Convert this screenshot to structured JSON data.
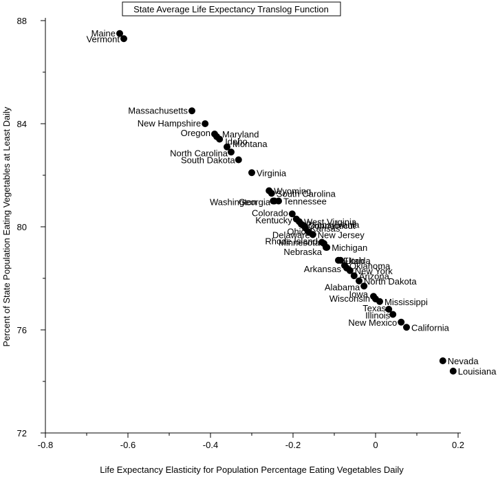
{
  "chart_data": {
    "type": "scatter",
    "title": "State Average Life Expectancy Translog Function",
    "xlabel": "Life Expectancy Elasticity for Population Percentage Eating Vegetables Daily",
    "ylabel": "Percent of State Population Eating Vegetables at Least Daily",
    "xlim": [
      -0.8,
      0.2
    ],
    "ylim": [
      72,
      88
    ],
    "x_ticks": [
      "-0.8",
      "-0.6",
      "-0.4",
      "-0.2",
      "0",
      "0.2"
    ],
    "y_ticks": [
      "72",
      "76",
      "80",
      "84",
      "88"
    ],
    "grid": false,
    "marker_color": "#000000",
    "points": [
      {
        "label": "Maine",
        "x": -0.62,
        "y": 87.5
      },
      {
        "label": "Vermont",
        "x": -0.61,
        "y": 87.3
      },
      {
        "label": "Massachusetts",
        "x": -0.445,
        "y": 84.5
      },
      {
        "label": "New Hampshire",
        "x": -0.413,
        "y": 84.0
      },
      {
        "label": "Oregon",
        "x": -0.39,
        "y": 83.6
      },
      {
        "label": "Maryland",
        "x": -0.385,
        "y": 83.5
      },
      {
        "label": "Idaho",
        "x": -0.378,
        "y": 83.4
      },
      {
        "label": "Montana",
        "x": -0.36,
        "y": 83.1
      },
      {
        "label": "North Carolina",
        "x": -0.35,
        "y": 82.9
      },
      {
        "label": "South Dakota",
        "x": -0.332,
        "y": 82.6
      },
      {
        "label": "Virginia",
        "x": -0.3,
        "y": 82.1
      },
      {
        "label": "Wyoming",
        "x": -0.258,
        "y": 81.4
      },
      {
        "label": "South Carolina",
        "x": -0.252,
        "y": 81.3
      },
      {
        "label": "Washington",
        "x": -0.248,
        "y": 81.0
      },
      {
        "label": "Georgia",
        "x": -0.245,
        "y": 81.0
      },
      {
        "label": "Tennessee",
        "x": -0.235,
        "y": 81.0
      },
      {
        "label": "Colorado",
        "x": -0.202,
        "y": 80.5
      },
      {
        "label": "Kentucky",
        "x": -0.192,
        "y": 80.3
      },
      {
        "label": "West Virginia",
        "x": -0.185,
        "y": 80.2
      },
      {
        "label": "Pennsylvania",
        "x": -0.18,
        "y": 80.1
      },
      {
        "label": "Connecticut",
        "x": -0.175,
        "y": 80.05
      },
      {
        "label": "Kansas",
        "x": -0.17,
        "y": 79.95
      },
      {
        "label": "Ohio",
        "x": -0.162,
        "y": 79.8
      },
      {
        "label": "New Jersey",
        "x": -0.152,
        "y": 79.7
      },
      {
        "label": "Delaware",
        "x": -0.152,
        "y": 79.7
      },
      {
        "label": "Rhode Island",
        "x": -0.13,
        "y": 79.4
      },
      {
        "label": "Minnesota",
        "x": -0.125,
        "y": 79.35
      },
      {
        "label": "Michigan",
        "x": -0.118,
        "y": 79.2
      },
      {
        "label": "Nebraska",
        "x": -0.12,
        "y": 79.2
      },
      {
        "label": "Florida",
        "x": -0.09,
        "y": 78.7
      },
      {
        "label": "Utah",
        "x": -0.085,
        "y": 78.7
      },
      {
        "label": "Oklahoma",
        "x": -0.075,
        "y": 78.5
      },
      {
        "label": "Arkansas",
        "x": -0.07,
        "y": 78.4
      },
      {
        "label": "New York",
        "x": -0.062,
        "y": 78.3
      },
      {
        "label": "Arizona",
        "x": -0.052,
        "y": 78.1
      },
      {
        "label": "North Dakota",
        "x": -0.04,
        "y": 77.9
      },
      {
        "label": "Alabama",
        "x": -0.028,
        "y": 77.7
      },
      {
        "label": "Iowa",
        "x": -0.005,
        "y": 77.3
      },
      {
        "label": "Wisconsin",
        "x": 0.0,
        "y": 77.2
      },
      {
        "label": "Mississippi",
        "x": 0.01,
        "y": 77.1
      },
      {
        "label": "Texas",
        "x": 0.032,
        "y": 76.8
      },
      {
        "label": "Illinois",
        "x": 0.042,
        "y": 76.6
      },
      {
        "label": "New Mexico",
        "x": 0.062,
        "y": 76.3
      },
      {
        "label": "California",
        "x": 0.075,
        "y": 76.1
      },
      {
        "label": "Nevada",
        "x": 0.163,
        "y": 74.8
      },
      {
        "label": "Louisiana",
        "x": 0.188,
        "y": 74.4
      }
    ]
  }
}
